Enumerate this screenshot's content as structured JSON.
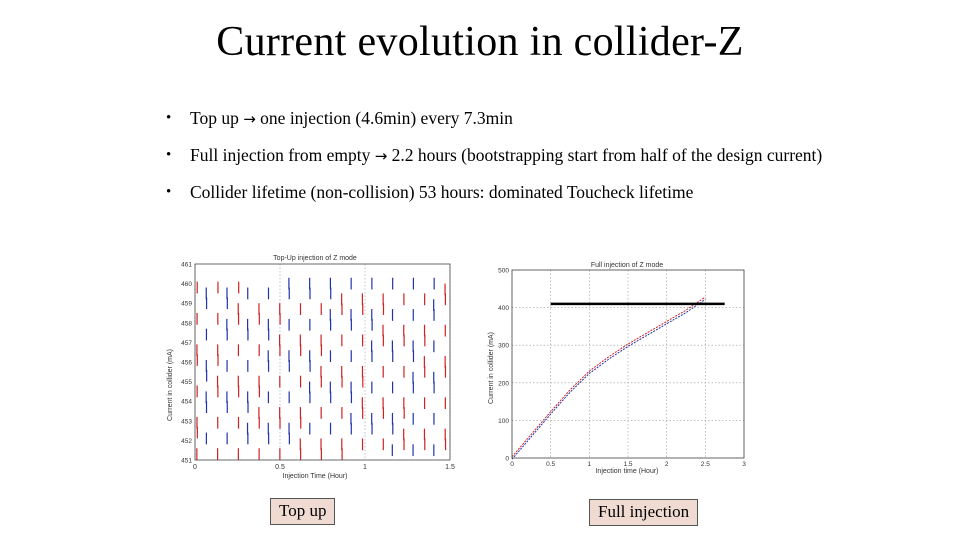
{
  "slide": {
    "title": "Current evolution in collider-Z",
    "bullets": [
      {
        "pre": "Top up ",
        "arrow": "→",
        "post": " one injection (4.6min) every 7.3min"
      },
      {
        "pre": "Full injection from empty ",
        "arrow": "→",
        "post": " 2.2 hours (bootstrapping start from half of the design current)"
      },
      {
        "pre": "Collider lifetime (non-collision) 53 hours: dominated Toucheck lifetime",
        "arrow": "",
        "post": ""
      }
    ],
    "captions": {
      "left": "Top up",
      "right": "Full injection"
    }
  },
  "chart_data": [
    {
      "type": "line",
      "title": "Top-Up injection of Z mode",
      "xlabel": "Injection Time (Hour)",
      "ylabel": "Current in collider (mA)",
      "x_ticks": [
        "0",
        "0.5",
        "1",
        "1.5"
      ],
      "y_ticks": [
        "451",
        "452",
        "453",
        "454",
        "455",
        "456",
        "457",
        "458",
        "459",
        "460",
        "461"
      ],
      "xlim": [
        0,
        1.5
      ],
      "ylim": [
        451,
        461
      ],
      "series_colors": [
        "#cc2222",
        "#2233aa"
      ],
      "injection_period_min": 7.3,
      "injection_duration_min": 4.6,
      "grid": true
    },
    {
      "type": "line",
      "title": "Full injection of Z mode",
      "xlabel": "Injection time (Hour)",
      "ylabel": "Current in collider (mA)",
      "x_ticks": [
        "0",
        "0.5",
        "1",
        "1.5",
        "2",
        "2.5",
        "3"
      ],
      "y_ticks": [
        "0",
        "100",
        "200",
        "300",
        "400",
        "500"
      ],
      "xlim": [
        0,
        3
      ],
      "ylim": [
        0,
        500
      ],
      "x": [
        0.0,
        0.25,
        0.5,
        0.75,
        1.0,
        1.25,
        1.5,
        1.75,
        2.0,
        2.25,
        2.5
      ],
      "y": [
        0,
        60,
        120,
        178,
        228,
        266,
        300,
        330,
        360,
        390,
        425
      ],
      "target_current": 410,
      "series_colors": [
        "#cc2222",
        "#2233aa"
      ],
      "grid": true
    }
  ]
}
